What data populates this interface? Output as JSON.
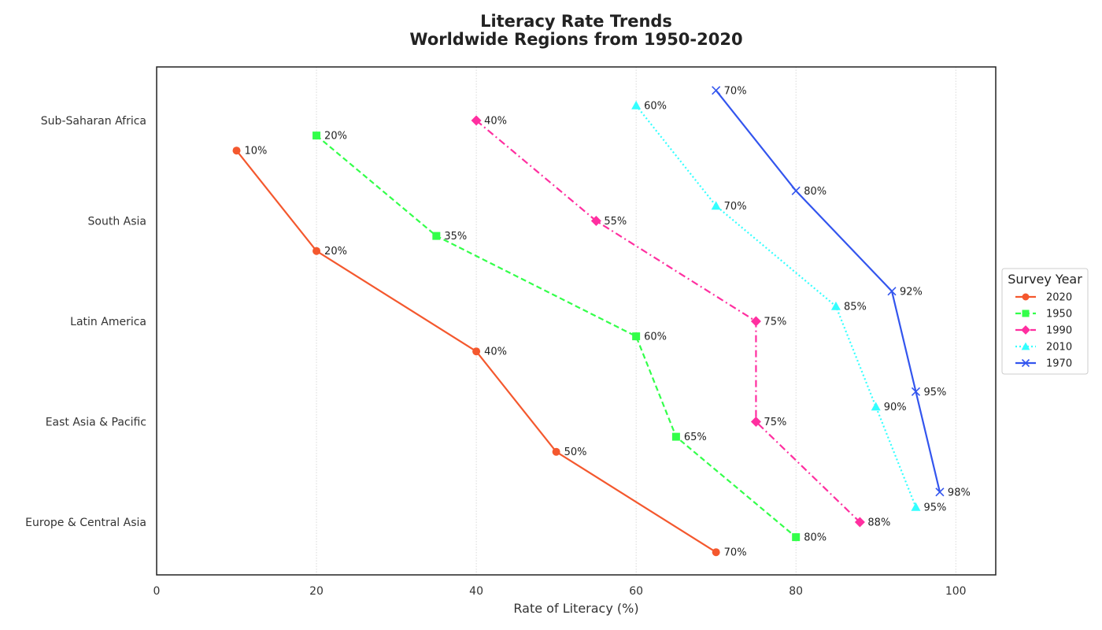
{
  "chart_data": {
    "type": "line",
    "title": [
      "Literacy Rate Trends",
      "Worldwide Regions from 1950-2020"
    ],
    "xlabel": "Rate of Literacy (%)",
    "ylabel": "",
    "xlim": [
      0,
      105
    ],
    "xticks": [
      0,
      20,
      40,
      60,
      80,
      100
    ],
    "categories": [
      "Sub-Saharan Africa",
      "South Asia",
      "Latin America",
      "East Asia & Pacific",
      "Europe & Central Asia"
    ],
    "grid": "vertical dotted",
    "legend": {
      "title": "Survey Year",
      "placement": "outside-right"
    },
    "label_suffix": "%",
    "series": [
      {
        "name": "2020",
        "color": "#f4582e",
        "dash": "solid",
        "marker": "circle",
        "values": [
          10,
          20,
          40,
          50,
          70
        ]
      },
      {
        "name": "1950",
        "color": "#33ff4a",
        "dash": "dashed",
        "marker": "square",
        "values": [
          20,
          35,
          60,
          65,
          80
        ]
      },
      {
        "name": "1990",
        "color": "#ff2fa0",
        "dash": "dashdot",
        "marker": "diamond",
        "values": [
          40,
          55,
          75,
          75,
          88
        ]
      },
      {
        "name": "2010",
        "color": "#33ffff",
        "dash": "dotted",
        "marker": "triangle",
        "values": [
          60,
          70,
          85,
          90,
          95
        ]
      },
      {
        "name": "1970",
        "color": "#3355ee",
        "dash": "solid",
        "marker": "x",
        "values": [
          70,
          80,
          92,
          95,
          98
        ]
      }
    ]
  }
}
